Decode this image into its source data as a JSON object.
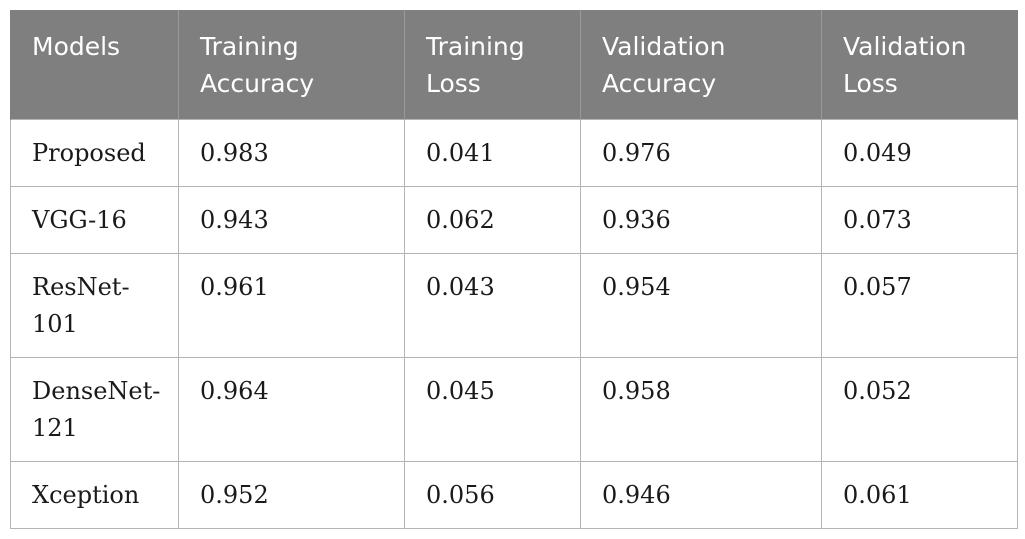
{
  "table": {
    "headers": [
      {
        "line1": "Models",
        "line2": ""
      },
      {
        "line1": "Training",
        "line2": "Accuracy"
      },
      {
        "line1": "Training",
        "line2": "Loss"
      },
      {
        "line1": "Validation",
        "line2": "Accuracy"
      },
      {
        "line1": "Validation",
        "line2": "Loss"
      }
    ],
    "rows": [
      {
        "model": {
          "line1": "Proposed",
          "line2": ""
        },
        "training_accuracy": "0.983",
        "training_loss": "0.041",
        "validation_accuracy": "0.976",
        "validation_loss": "0.049"
      },
      {
        "model": {
          "line1": "VGG-16",
          "line2": ""
        },
        "training_accuracy": "0.943",
        "training_loss": "0.062",
        "validation_accuracy": "0.936",
        "validation_loss": "0.073"
      },
      {
        "model": {
          "line1": "ResNet-",
          "line2": "101"
        },
        "training_accuracy": "0.961",
        "training_loss": "0.043",
        "validation_accuracy": "0.954",
        "validation_loss": "0.057"
      },
      {
        "model": {
          "line1": "DenseNet-",
          "line2": "121"
        },
        "training_accuracy": "0.964",
        "training_loss": "0.045",
        "validation_accuracy": "0.958",
        "validation_loss": "0.052"
      },
      {
        "model": {
          "line1": "Xception",
          "line2": ""
        },
        "training_accuracy": "0.952",
        "training_loss": "0.056",
        "validation_accuracy": "0.946",
        "validation_loss": "0.061"
      }
    ],
    "colors": {
      "header_bg": "#7f7f7f",
      "header_text": "#ffffff",
      "border": "#b4b4b4",
      "cell_text": "#1a1a1a"
    }
  }
}
